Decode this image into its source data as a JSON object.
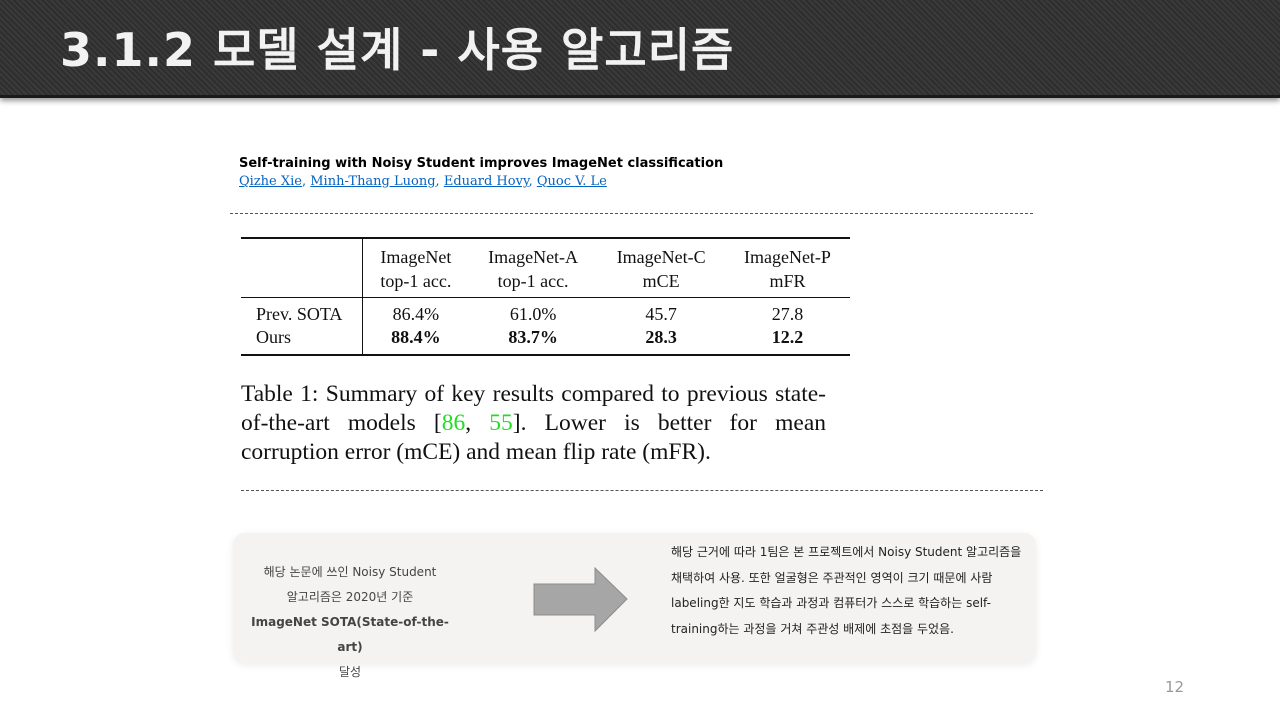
{
  "slide": {
    "title": "3.1.2 모델 설계 - 사용 알고리즘",
    "page_number": "12"
  },
  "paper": {
    "title": "Self-training with Noisy Student improves ImageNet classification",
    "authors": [
      "Qizhe Xie",
      "Minh-Thang Luong",
      "Eduard Hovy",
      "Quoc V. Le"
    ],
    "author_separator": ","
  },
  "table": {
    "headers": [
      {
        "line1": "",
        "line2": ""
      },
      {
        "line1": "ImageNet",
        "line2": "top-1 acc."
      },
      {
        "line1": "ImageNet-A",
        "line2": "top-1 acc."
      },
      {
        "line1": "ImageNet-C",
        "line2": "mCE"
      },
      {
        "line1": "ImageNet-P",
        "line2": "mFR"
      }
    ],
    "rows": [
      {
        "label": "Prev. SOTA",
        "values": [
          "86.4%",
          "61.0%",
          "45.7",
          "27.8"
        ],
        "bold": false
      },
      {
        "label": "Ours",
        "values": [
          "88.4%",
          "83.7%",
          "28.3",
          "12.2"
        ],
        "bold": true
      }
    ]
  },
  "caption": {
    "part1": "Table 1:  Summary of key results compared to previous state-of-the-art models [",
    "ref1": "86",
    "sep": ", ",
    "ref2": "55",
    "part2": "].  Lower is better for mean corruption error (mCE) and mean flip rate (mFR).",
    "ref_color": "#22dd22"
  },
  "notes": {
    "left": [
      "해당 논문에 쓰인 Noisy Student",
      "알고리즘은 2020년 기준",
      "ImageNet SOTA(State-of-the-art)",
      "달성"
    ],
    "right": "해당 근거에 따라 1팀은 본 프로젝트에서 Noisy Student 알고리즘을 채택하여 사용. 또한 얼굴형은 주관적인 영역이 크기 때문에 사람 labeling한 지도 학습과 과정과 컴퓨터가 스스로 학습하는 self-training하는 과정을 거쳐 주관성 배제에 초점을 두었음.",
    "arrow_icon": "right-arrow-icon"
  }
}
